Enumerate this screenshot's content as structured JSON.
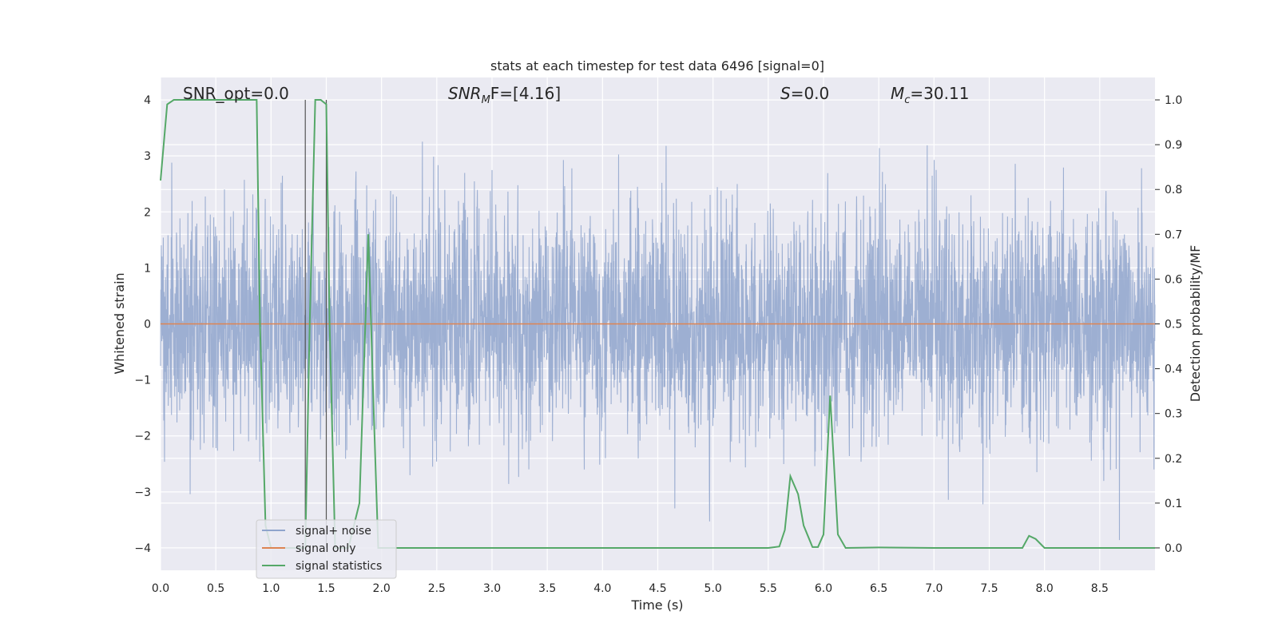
{
  "chart_data": {
    "type": "line",
    "title": "stats at each timestep for test data 6496 [signal=0]",
    "xlabel": "Time (s)",
    "ylabel_left": "Whitened strain",
    "ylabel_right": "Detection probability/MF",
    "xlim": [
      0.0,
      9.0
    ],
    "ylim_left": [
      -4.4,
      4.4
    ],
    "ylim_right": [
      -0.05,
      1.05
    ],
    "x_ticks": [
      "0.0",
      "0.5",
      "1.0",
      "1.5",
      "2.0",
      "2.5",
      "3.0",
      "3.5",
      "4.0",
      "4.5",
      "5.0",
      "5.5",
      "6.0",
      "6.5",
      "7.0",
      "7.5",
      "8.0",
      "8.5"
    ],
    "x_tick_values": [
      0.0,
      0.5,
      1.0,
      1.5,
      2.0,
      2.5,
      3.0,
      3.5,
      4.0,
      4.5,
      5.0,
      5.5,
      6.0,
      6.5,
      7.0,
      7.5,
      8.0,
      8.5
    ],
    "y_ticks_left": [
      "−4",
      "−3",
      "−2",
      "−1",
      "0",
      "1",
      "2",
      "3",
      "4"
    ],
    "y_tick_values_left": [
      -4,
      -3,
      -2,
      -1,
      0,
      1,
      2,
      3,
      4
    ],
    "y_ticks_right": [
      "0.0",
      "0.1",
      "0.2",
      "0.3",
      "0.4",
      "0.5",
      "0.6",
      "0.7",
      "0.8",
      "0.9",
      "1.0"
    ],
    "y_tick_values_right": [
      0.0,
      0.1,
      0.2,
      0.3,
      0.4,
      0.5,
      0.6,
      0.7,
      0.8,
      0.9,
      1.0
    ],
    "grid": true,
    "legend_position": "lower-left",
    "annotations": {
      "snr_opt": "SNR_opt=0.0",
      "snr_mf_main": "SNR",
      "snr_mf_sub": "M",
      "snr_mf_rest": "F=[4.16]",
      "s_main": "S",
      "s_rest": "=0.0",
      "mc_main": "M",
      "mc_sub": "c",
      "mc_rest": "=30.11"
    },
    "vertical_lines": [
      1.31,
      1.5
    ],
    "series": [
      {
        "name": "signal+ noise",
        "color": "#8fa4cc",
        "kind": "noise",
        "amplitude_std": 1.0,
        "x_range": [
          0.0,
          9.0
        ]
      },
      {
        "name": "signal only",
        "color": "#dd8452",
        "kind": "flat",
        "value": 0.0
      },
      {
        "name": "signal statistics",
        "color": "#55a868",
        "axis": "right",
        "x": [
          0.0,
          0.06,
          0.12,
          0.2,
          0.5,
          0.87,
          0.9,
          0.95,
          1.0,
          1.31,
          1.35,
          1.4,
          1.45,
          1.5,
          1.53,
          1.58,
          1.7,
          1.8,
          1.88,
          1.93,
          1.97,
          2.05,
          5.5,
          5.6,
          5.65,
          5.7,
          5.77,
          5.82,
          5.9,
          5.95,
          6.0,
          6.06,
          6.13,
          6.2,
          6.5,
          7.0,
          7.8,
          7.86,
          7.92,
          8.0,
          9.0
        ],
        "y": [
          0.82,
          0.99,
          1.0,
          1.0,
          1.0,
          1.0,
          0.5,
          0.05,
          0.0,
          0.0,
          0.5,
          1.0,
          1.0,
          0.99,
          0.5,
          0.0,
          0.0,
          0.1,
          0.7,
          0.3,
          0.0,
          0.0,
          0.0,
          0.003,
          0.04,
          0.16,
          0.12,
          0.05,
          0.002,
          0.002,
          0.03,
          0.34,
          0.03,
          0.0,
          0.001,
          0.0,
          0.0,
          0.027,
          0.02,
          0.0,
          0.0
        ]
      }
    ]
  }
}
